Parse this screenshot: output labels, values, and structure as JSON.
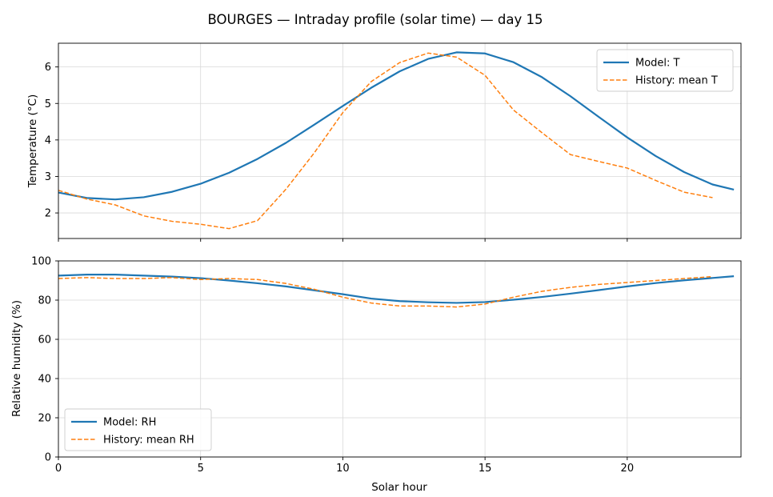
{
  "figure_title": "BOURGES — Intraday profile (solar time) — day 15",
  "chart_data": [
    {
      "type": "line",
      "ylabel": "Temperature (°C)",
      "xlim": [
        0,
        24
      ],
      "ylim": [
        1.3,
        6.65
      ],
      "xticks": [
        0,
        5,
        10,
        15,
        20
      ],
      "yticks": [
        2,
        3,
        4,
        5,
        6
      ],
      "grid": true,
      "legend_position": "top-right",
      "colors": {
        "model": "#1f77b4",
        "history": "#ff7f0e"
      },
      "series": [
        {
          "name": "Model: T",
          "style": "solid",
          "x": [
            0,
            1,
            2,
            3,
            4,
            5,
            6,
            7,
            8,
            9,
            10,
            11,
            12,
            13,
            14,
            15,
            16,
            17,
            18,
            19,
            20,
            21,
            22,
            23,
            23.75
          ],
          "y": [
            2.56,
            2.41,
            2.37,
            2.43,
            2.58,
            2.8,
            3.1,
            3.48,
            3.92,
            4.42,
            4.93,
            5.43,
            5.88,
            6.22,
            6.4,
            6.37,
            6.13,
            5.72,
            5.2,
            4.63,
            4.07,
            3.56,
            3.12,
            2.78,
            2.64
          ]
        },
        {
          "name": "History: mean T",
          "style": "dashed",
          "x": [
            0,
            1,
            2,
            3,
            4,
            5,
            6,
            7,
            8,
            9,
            10,
            11,
            12,
            13,
            14,
            15,
            16,
            17,
            18,
            19,
            20,
            21,
            22,
            23
          ],
          "y": [
            2.62,
            2.38,
            2.22,
            1.92,
            1.77,
            1.69,
            1.57,
            1.79,
            2.65,
            3.65,
            4.75,
            5.6,
            6.12,
            6.38,
            6.27,
            5.77,
            4.82,
            4.2,
            3.6,
            3.41,
            3.23,
            2.89,
            2.57,
            2.42
          ]
        }
      ]
    },
    {
      "type": "line",
      "xlabel": "Solar hour",
      "ylabel": "Relative humidity (%)",
      "xlim": [
        0,
        24
      ],
      "ylim": [
        0,
        100
      ],
      "xticks": [
        0,
        5,
        10,
        15,
        20
      ],
      "yticks": [
        0,
        20,
        40,
        60,
        80,
        100
      ],
      "grid": true,
      "legend_position": "bottom-left",
      "colors": {
        "model": "#1f77b4",
        "history": "#ff7f0e"
      },
      "series": [
        {
          "name": "Model: RH",
          "style": "solid",
          "x": [
            0,
            1,
            2,
            3,
            4,
            5,
            6,
            7,
            8,
            9,
            10,
            11,
            12,
            13,
            14,
            15,
            16,
            17,
            18,
            19,
            20,
            21,
            22,
            23,
            23.75
          ],
          "y": [
            92.5,
            93.0,
            93.0,
            92.5,
            92.0,
            91.2,
            90.0,
            88.6,
            87.0,
            85.0,
            83.0,
            80.8,
            79.5,
            78.9,
            78.6,
            79.0,
            80.2,
            81.6,
            83.3,
            85.1,
            87.0,
            88.7,
            90.1,
            91.3,
            92.2
          ]
        },
        {
          "name": "History: mean RH",
          "style": "dashed",
          "x": [
            0,
            1,
            2,
            3,
            4,
            5,
            6,
            7,
            8,
            9,
            10,
            11,
            12,
            13,
            14,
            15,
            16,
            17,
            18,
            19,
            20,
            21,
            22,
            23
          ],
          "y": [
            91.0,
            91.5,
            91.0,
            91.0,
            91.5,
            90.5,
            91.0,
            90.5,
            88.5,
            85.5,
            81.5,
            78.5,
            77.0,
            77.0,
            76.5,
            78.0,
            81.5,
            84.5,
            86.5,
            88.0,
            89.0,
            90.0,
            91.0,
            92.0
          ]
        }
      ]
    }
  ]
}
